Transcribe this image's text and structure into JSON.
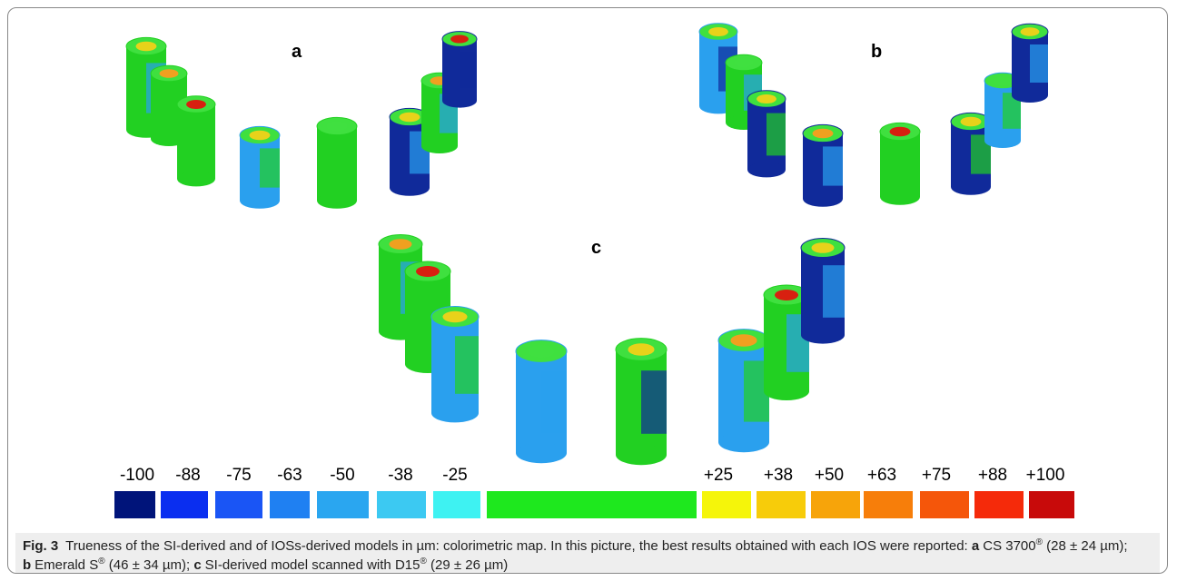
{
  "panels": [
    "a",
    "b",
    "c"
  ],
  "scale": {
    "labels": [
      "-100",
      "-88",
      "-75",
      "-63",
      "-50",
      "-38",
      "-25",
      "+25",
      "+38",
      "+50",
      "+63",
      "+75",
      "+88",
      "+100"
    ],
    "colors": [
      "#00147a",
      "#0a2ef0",
      "#1a55f5",
      "#1f80f2",
      "#2aa6f0",
      "#3cc9f2",
      "#3ef2f2",
      "#1ee81e",
      "#f5f50a",
      "#f7cc0a",
      "#f7a40a",
      "#f77e0a",
      "#f5560a",
      "#f52a0a",
      "#c80a0a"
    ]
  },
  "caption": {
    "label": "Fig. 3",
    "intro": "Trueness of the SI-derived and of IOSs-derived models in µm: colorimetric map. In this picture, the best results obtained with each IOS were reported: ",
    "items": [
      {
        "key": "a",
        "name": "CS 3700",
        "mark": "®",
        "detail": " (28 ± 24 µm)",
        "end": "; "
      },
      {
        "key": "b",
        "name": "Emerald S",
        "mark": "®",
        "detail": " (46 ± 34 µm)",
        "end": "; "
      },
      {
        "key": "c",
        "name": "SI-derived model scanned with D15",
        "mark": "®",
        "detail": " (29 ± 26 µm)",
        "end": ""
      }
    ]
  }
}
